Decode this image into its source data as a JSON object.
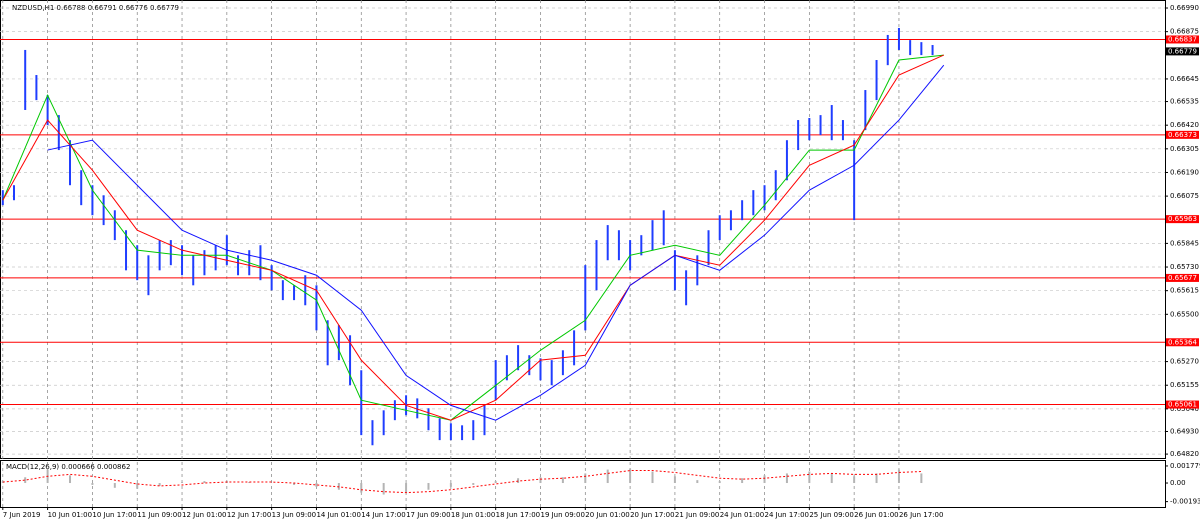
{
  "chart_data": [
    {
      "type": "hlbar",
      "title": "NZDUSD,H1  0.66788 0.66791 0.66776 0.66779",
      "color": "#1f3dff",
      "xlim": [
        -1,
        415
      ],
      "ylim": [
        0.64801,
        0.67029
      ],
      "grid": true,
      "x": [
        0,
        4,
        8,
        12,
        16,
        20,
        24,
        28,
        32,
        36,
        40,
        44,
        48,
        52,
        56,
        60,
        64,
        68,
        72,
        76,
        80,
        84,
        88,
        92,
        96,
        100,
        104,
        108,
        112,
        116,
        120,
        124,
        128,
        132,
        136,
        140,
        144,
        148,
        152,
        156,
        160,
        164,
        168,
        172,
        176,
        180,
        184,
        188,
        192,
        196,
        200,
        204,
        208,
        212,
        216,
        220,
        224,
        228,
        232,
        236,
        240,
        244,
        248,
        252,
        256,
        260,
        264,
        268,
        272,
        276,
        280,
        284,
        288,
        292,
        296,
        300,
        304,
        308,
        312,
        316,
        320,
        324,
        328,
        332
      ],
      "high": [
        0.66104,
        0.66128,
        0.66786,
        0.66664,
        0.66566,
        0.66469,
        0.66347,
        0.66201,
        0.66128,
        0.66079,
        0.66006,
        0.65909,
        0.65836,
        0.65787,
        0.65861,
        0.65861,
        0.65836,
        0.65787,
        0.65812,
        0.65836,
        0.65885,
        0.65787,
        0.65812,
        0.65836,
        0.65739,
        0.65666,
        0.65641,
        0.6569,
        0.65641,
        0.65471,
        0.65447,
        0.65398,
        0.65228,
        0.64985,
        0.65033,
        0.65082,
        0.65106,
        0.65091,
        0.65043,
        0.64994,
        0.6497,
        0.6496,
        0.64985,
        0.65058,
        0.65277,
        0.65301,
        0.6535,
        0.65301,
        0.65286,
        0.65277,
        0.65325,
        0.65422,
        0.65739,
        0.65861,
        0.65934,
        0.65909,
        0.65861,
        0.65885,
        0.65958,
        0.66006,
        0.65812,
        0.65714,
        0.65787,
        0.65909,
        0.65982,
        0.66006,
        0.66055,
        0.66104,
        0.66128,
        0.66201,
        0.66347,
        0.66445,
        0.66455,
        0.66469,
        0.66518,
        0.66445,
        0.66347,
        0.66591,
        0.66737,
        0.66859,
        0.66893,
        0.66834,
        0.66824,
        0.6681
      ],
      "low": [
        0.66031,
        0.66055,
        0.66494,
        0.66542,
        0.6642,
        0.66299,
        0.66128,
        0.66031,
        0.65982,
        0.65934,
        0.65861,
        0.65714,
        0.65666,
        0.65593,
        0.65714,
        0.65739,
        0.6569,
        0.65641,
        0.6569,
        0.65714,
        0.65739,
        0.6569,
        0.6569,
        0.65666,
        0.65617,
        0.65569,
        0.65569,
        0.65544,
        0.65422,
        0.65252,
        0.65277,
        0.65155,
        0.64912,
        0.64863,
        0.64912,
        0.64985,
        0.65009,
        0.64994,
        0.64936,
        0.64888,
        0.64888,
        0.64888,
        0.64888,
        0.64912,
        0.65082,
        0.65179,
        0.65228,
        0.65204,
        0.65179,
        0.65155,
        0.65204,
        0.65252,
        0.65422,
        0.65617,
        0.65763,
        0.65763,
        0.65714,
        0.65787,
        0.65812,
        0.65836,
        0.65617,
        0.65544,
        0.65641,
        0.65739,
        0.65861,
        0.65909,
        0.65958,
        0.65982,
        0.66006,
        0.66055,
        0.66152,
        0.66299,
        0.66347,
        0.66372,
        0.66347,
        0.66347,
        0.65958,
        0.66396,
        0.66542,
        0.66712,
        0.66786,
        0.66761,
        0.66761,
        0.66761
      ],
      "lines": [
        {
          "color": "#00c800",
          "x": [
            0,
            16,
            32,
            48,
            64,
            80,
            96,
            112,
            128,
            144,
            160,
            176,
            192,
            208,
            224,
            240,
            256,
            272,
            288,
            304,
            320,
            336
          ],
          "values": [
            0.66055,
            0.66566,
            0.66104,
            0.65812,
            0.65787,
            0.65787,
            0.65714,
            0.65569,
            0.65082,
            0.65033,
            0.64985,
            0.65154,
            0.65325,
            0.65471,
            0.65787,
            0.65836,
            0.65787,
            0.66031,
            0.66299,
            0.66299,
            0.66737,
            0.66761
          ]
        },
        {
          "color": "#ff0000",
          "x": [
            0,
            16,
            32,
            48,
            64,
            80,
            96,
            112,
            128,
            144,
            160,
            176,
            192,
            208,
            224,
            240,
            256,
            272,
            288,
            304,
            320,
            336
          ],
          "values": [
            0.66055,
            0.66445,
            0.66201,
            0.65909,
            0.65812,
            0.65763,
            0.65714,
            0.65617,
            0.65277,
            0.65057,
            0.64985,
            0.65082,
            0.65277,
            0.65301,
            0.65641,
            0.65787,
            0.65739,
            0.65958,
            0.66225,
            0.66323,
            0.66664,
            0.66761
          ]
        },
        {
          "color": "#1010ff",
          "x": [
            0,
            16,
            32,
            48,
            64,
            80,
            96,
            112,
            128,
            144,
            160,
            176,
            192,
            208,
            224,
            240,
            256,
            272,
            288,
            304,
            320,
            336
          ],
          "values": [
            null,
            0.66299,
            0.66347,
            0.66128,
            0.65909,
            0.65812,
            0.65763,
            0.6569,
            0.6552,
            0.65203,
            0.65057,
            0.64985,
            0.65106,
            0.65252,
            0.65641,
            0.65787,
            0.65714,
            0.65885,
            0.66104,
            0.66225,
            0.66445,
            0.66712
          ]
        }
      ],
      "levels": [
        0.66837,
        0.66373,
        0.65963,
        0.65677,
        0.65364,
        0.65061
      ],
      "level_color": "#ff0000",
      "price": 0.66779,
      "yticks": [
        {
          "value": 0.6699,
          "label": "0.66990"
        },
        0.66875,
        0.66645,
        0.66535,
        {
          "value": 0.6642,
          "label": "0.66420"
        },
        0.66305,
        {
          "value": 0.6619,
          "label": "0.66190"
        },
        0.66075,
        0.65845,
        {
          "value": 0.6573,
          "label": "0.65730"
        },
        0.65615,
        {
          "value": 0.655,
          "label": "0.65500"
        },
        {
          "value": 0.6527,
          "label": "0.65270"
        },
        0.65155,
        {
          "value": 0.6504,
          "label": "0.65040"
        },
        {
          "value": 0.6493,
          "label": "0.64930"
        },
        {
          "value": 0.6482,
          "label": "0.64820"
        }
      ],
      "xticks": [
        {
          "value": 0,
          "label": "7 Jun 2019"
        },
        {
          "value": 16,
          "label": "10 Jun 01:00"
        },
        {
          "value": 32,
          "label": "10 Jun 17:00"
        },
        {
          "value": 48,
          "label": "11 Jun 09:00"
        },
        {
          "value": 64,
          "label": "12 Jun 01:00"
        },
        {
          "value": 80,
          "label": "12 Jun 17:00"
        },
        {
          "value": 96,
          "label": "13 Jun 09:00"
        },
        {
          "value": 112,
          "label": "14 Jun 01:00"
        },
        {
          "value": 128,
          "label": "14 Jun 17:00"
        },
        {
          "value": 144,
          "label": "17 Jun 09:00"
        },
        {
          "value": 160,
          "label": "18 Jun 01:00"
        },
        {
          "value": 176,
          "label": "18 Jun 17:00"
        },
        {
          "value": 192,
          "label": "19 Jun 09:00"
        },
        {
          "value": 208,
          "label": "20 Jun 01:00"
        },
        {
          "value": 224,
          "label": "20 Jun 17:00"
        },
        {
          "value": 240,
          "label": "21 Jun 09:00"
        },
        {
          "value": 256,
          "label": "24 Jun 01:00"
        },
        {
          "value": 272,
          "label": "24 Jun 17:00"
        },
        {
          "value": 288,
          "label": "25 Jun 09:00"
        },
        {
          "value": 304,
          "label": "26 Jun 01:00"
        },
        {
          "value": 320,
          "label": "26 Jun 17:00"
        }
      ]
    },
    {
      "type": "macd",
      "title": "MACD(12,26,9) 0.000666 0.000862",
      "xlim": [
        -1,
        415
      ],
      "ylim": [
        -0.0025,
        0.0024
      ],
      "color": "#b4b4b4",
      "signal_color": "#ff0000",
      "x": [
        0,
        8,
        16,
        24,
        32,
        40,
        48,
        56,
        64,
        72,
        80,
        88,
        96,
        104,
        112,
        120,
        128,
        136,
        144,
        152,
        160,
        168,
        176,
        184,
        192,
        200,
        208,
        216,
        224,
        232,
        240,
        248,
        256,
        264,
        272,
        280,
        288,
        296,
        304,
        312,
        320,
        328
      ],
      "values": [
        0.0002,
        0.0006,
        0.0014,
        0.0008,
        -0.0002,
        -0.0005,
        -0.0006,
        -0.0003,
        0.0001,
        0.0002,
        0.0002,
        0.0001,
        0,
        -0.0002,
        -0.0004,
        -0.0007,
        -0.001,
        -0.0012,
        -0.001,
        -0.0007,
        -0.0004,
        -0.0002,
        0.0002,
        0.0005,
        0.0006,
        0.0006,
        0.001,
        0.0014,
        0.0015,
        0.0012,
        0.0007,
        0.0003,
        0.0002,
        0.0005,
        0.0008,
        0.001,
        0.0012,
        0.001,
        0.0007,
        0.001,
        0.0014,
        0.001
      ],
      "signal": [
        0.0001,
        0.0003,
        0.0007,
        0.0009,
        0.0007,
        0.0003,
        -0.0001,
        -0.0003,
        -0.0002,
        0,
        0.0001,
        0.0001,
        0.0001,
        0,
        -0.0002,
        -0.0004,
        -0.0007,
        -0.0009,
        -0.001,
        -0.0009,
        -0.0007,
        -0.0004,
        -0.0001,
        0.0002,
        0.0004,
        0.0005,
        0.0007,
        0.001,
        0.0013,
        0.0013,
        0.0011,
        0.0008,
        0.0005,
        0.0004,
        0.0005,
        0.0007,
        0.0009,
        0.001,
        0.0009,
        0.0009,
        0.0011,
        0.0012
      ],
      "yticks": [
        0.001779,
        {
          "value": 0,
          "label": "0.00"
        },
        -0.001939
      ]
    }
  ]
}
